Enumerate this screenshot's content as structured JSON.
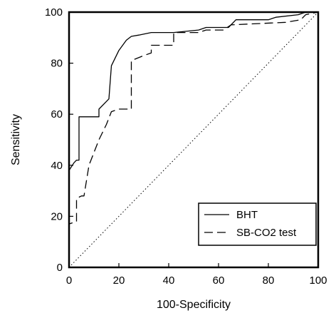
{
  "chart_data": {
    "type": "line",
    "xlabel": "100-Specificity",
    "ylabel": "Sensitivity",
    "xlim": [
      0,
      100
    ],
    "ylim": [
      0,
      100
    ],
    "x_ticks": [
      "0",
      "20",
      "40",
      "60",
      "80",
      "100"
    ],
    "y_ticks": [
      "0",
      "20",
      "40",
      "60",
      "80",
      "100"
    ],
    "grid": false,
    "legend_position": "bottom-right",
    "reference_line": {
      "style": "dotted",
      "points": [
        [
          0,
          0
        ],
        [
          100,
          100
        ]
      ]
    },
    "series": [
      {
        "name": "BHT",
        "style": "solid",
        "points": [
          [
            0,
            0
          ],
          [
            0,
            38
          ],
          [
            2,
            41
          ],
          [
            3,
            42
          ],
          [
            4,
            42
          ],
          [
            4,
            59
          ],
          [
            12,
            59
          ],
          [
            12,
            62
          ],
          [
            15,
            65
          ],
          [
            16,
            66
          ],
          [
            17,
            79
          ],
          [
            20,
            85
          ],
          [
            23,
            89
          ],
          [
            25,
            90.5
          ],
          [
            28,
            91
          ],
          [
            33,
            92
          ],
          [
            42,
            92
          ],
          [
            52,
            93
          ],
          [
            55,
            94
          ],
          [
            64,
            94
          ],
          [
            67,
            97
          ],
          [
            80,
            97
          ],
          [
            83,
            98
          ],
          [
            92,
            99
          ],
          [
            95,
            100
          ],
          [
            100,
            100
          ]
        ]
      },
      {
        "name": "SB-CO2 test",
        "style": "dashed",
        "points": [
          [
            0,
            0
          ],
          [
            0,
            17
          ],
          [
            3,
            18
          ],
          [
            3,
            27
          ],
          [
            5,
            28
          ],
          [
            6,
            28
          ],
          [
            8,
            40
          ],
          [
            10,
            45
          ],
          [
            12,
            50
          ],
          [
            15,
            56
          ],
          [
            17,
            61
          ],
          [
            20,
            62
          ],
          [
            25,
            62
          ],
          [
            25,
            81
          ],
          [
            30,
            83
          ],
          [
            33,
            84
          ],
          [
            33,
            87
          ],
          [
            42,
            87
          ],
          [
            42,
            92
          ],
          [
            52,
            92
          ],
          [
            55,
            93
          ],
          [
            62,
            93
          ],
          [
            65,
            95
          ],
          [
            87,
            96
          ],
          [
            93,
            97
          ],
          [
            95,
            99
          ],
          [
            100,
            100
          ]
        ]
      }
    ]
  }
}
